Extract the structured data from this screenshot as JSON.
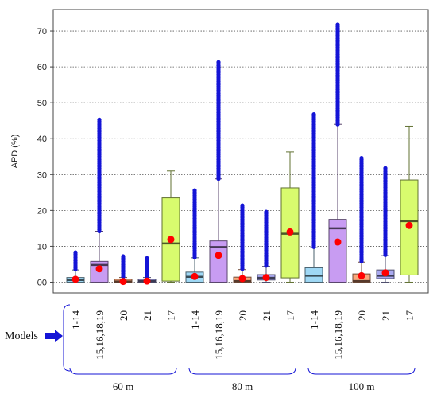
{
  "chart_data": {
    "type": "box",
    "ylabel": "APD (%)",
    "ylim": [
      -3,
      76
    ],
    "yticks": [
      {
        "value": 0,
        "label": "00"
      },
      {
        "value": 10,
        "label": "10"
      },
      {
        "value": 20,
        "label": "20"
      },
      {
        "value": 30,
        "label": "30"
      },
      {
        "value": 40,
        "label": "40"
      },
      {
        "value": 50,
        "label": "50"
      },
      {
        "value": 60,
        "label": "60"
      },
      {
        "value": 70,
        "label": "70"
      }
    ],
    "grid": "horizontal dotted",
    "models_label": "Models",
    "model_colors": {
      "1-14": "#9fd8f5",
      "15,16,18,19": "#c89cf2",
      "20": "#f9a77b",
      "21": "#a9a9f0",
      "17": "#d8fb6e"
    },
    "outlier_color": "#1414d6",
    "mean_color": "#ff0000",
    "groups": [
      {
        "label": "60 m",
        "boxes": [
          {
            "model": "1-14",
            "q1": 0.0,
            "median": 0.6,
            "q3": 1.3,
            "whisker_low": 0.0,
            "whisker_high": 3.4,
            "mean": 0.8,
            "outliers_from": 3.6,
            "outliers_to": 8.3
          },
          {
            "model": "15,16,18,19",
            "q1": 0.0,
            "median": 4.8,
            "q3": 5.8,
            "whisker_low": 0.0,
            "whisker_high": 14.2,
            "mean": 3.7,
            "outliers_from": 14.2,
            "outliers_to": 45.3
          },
          {
            "model": "20",
            "q1": 0.0,
            "median": 0.2,
            "q3": 0.8,
            "whisker_low": 0.0,
            "whisker_high": 1.3,
            "mean": 0.2,
            "outliers_from": 1.5,
            "outliers_to": 7.2
          },
          {
            "model": "21",
            "q1": 0.0,
            "median": 0.3,
            "q3": 0.8,
            "whisker_low": 0.0,
            "whisker_high": 1.3,
            "mean": 0.3,
            "outliers_from": 1.5,
            "outliers_to": 6.7
          },
          {
            "model": "17",
            "q1": 0.3,
            "median": 10.8,
            "q3": 23.5,
            "whisker_low": 0.0,
            "whisker_high": 31.0,
            "mean": 11.9,
            "outliers_from": null,
            "outliers_to": null
          }
        ]
      },
      {
        "label": "80 m",
        "boxes": [
          {
            "model": "1-14",
            "q1": 0.0,
            "median": 1.5,
            "q3": 2.8,
            "whisker_low": 0.0,
            "whisker_high": 6.8,
            "mean": 1.6,
            "outliers_from": 6.9,
            "outliers_to": 25.6
          },
          {
            "model": "15,16,18,19",
            "q1": 0.0,
            "median": 9.8,
            "q3": 11.5,
            "whisker_low": 0.0,
            "whisker_high": 28.8,
            "mean": 7.5,
            "outliers_from": 28.8,
            "outliers_to": 61.3
          },
          {
            "model": "20",
            "q1": 0.0,
            "median": 0.3,
            "q3": 1.4,
            "whisker_low": 0.0,
            "whisker_high": 3.5,
            "mean": 1.0,
            "outliers_from": 3.7,
            "outliers_to": 21.4
          },
          {
            "model": "21",
            "q1": 0.6,
            "median": 1.2,
            "q3": 2.1,
            "whisker_low": 0.0,
            "whisker_high": 4.4,
            "mean": 1.3,
            "outliers_from": 4.6,
            "outliers_to": 19.6
          },
          {
            "model": "17",
            "q1": 1.2,
            "median": 13.5,
            "q3": 26.3,
            "whisker_low": 0.0,
            "whisker_high": 36.3,
            "mean": 14.0,
            "outliers_from": null,
            "outliers_to": null
          }
        ]
      },
      {
        "label": "100 m",
        "boxes": [
          {
            "model": "1-14",
            "q1": 0.0,
            "median": 1.8,
            "q3": 4.0,
            "whisker_low": 0.0,
            "whisker_high": 9.6,
            "mean": null,
            "outliers_from": 9.8,
            "outliers_to": 46.8
          },
          {
            "model": "15,16,18,19",
            "q1": 0.0,
            "median": 15.0,
            "q3": 17.5,
            "whisker_low": 0.0,
            "whisker_high": 44.0,
            "mean": 11.2,
            "outliers_from": 44.0,
            "outliers_to": 71.8
          },
          {
            "model": "20",
            "q1": 0.0,
            "median": 0.3,
            "q3": 2.3,
            "whisker_low": 0.0,
            "whisker_high": 5.6,
            "mean": 1.8,
            "outliers_from": 5.8,
            "outliers_to": 34.6
          },
          {
            "model": "21",
            "q1": 1.0,
            "median": 1.8,
            "q3": 3.4,
            "whisker_low": 0.0,
            "whisker_high": 7.4,
            "mean": 2.6,
            "outliers_from": 7.6,
            "outliers_to": 31.8
          },
          {
            "model": "17",
            "q1": 2.0,
            "median": 17.0,
            "q3": 28.5,
            "whisker_low": 0.0,
            "whisker_high": 43.5,
            "mean": 15.8,
            "outliers_from": null,
            "outliers_to": null
          }
        ]
      }
    ]
  }
}
